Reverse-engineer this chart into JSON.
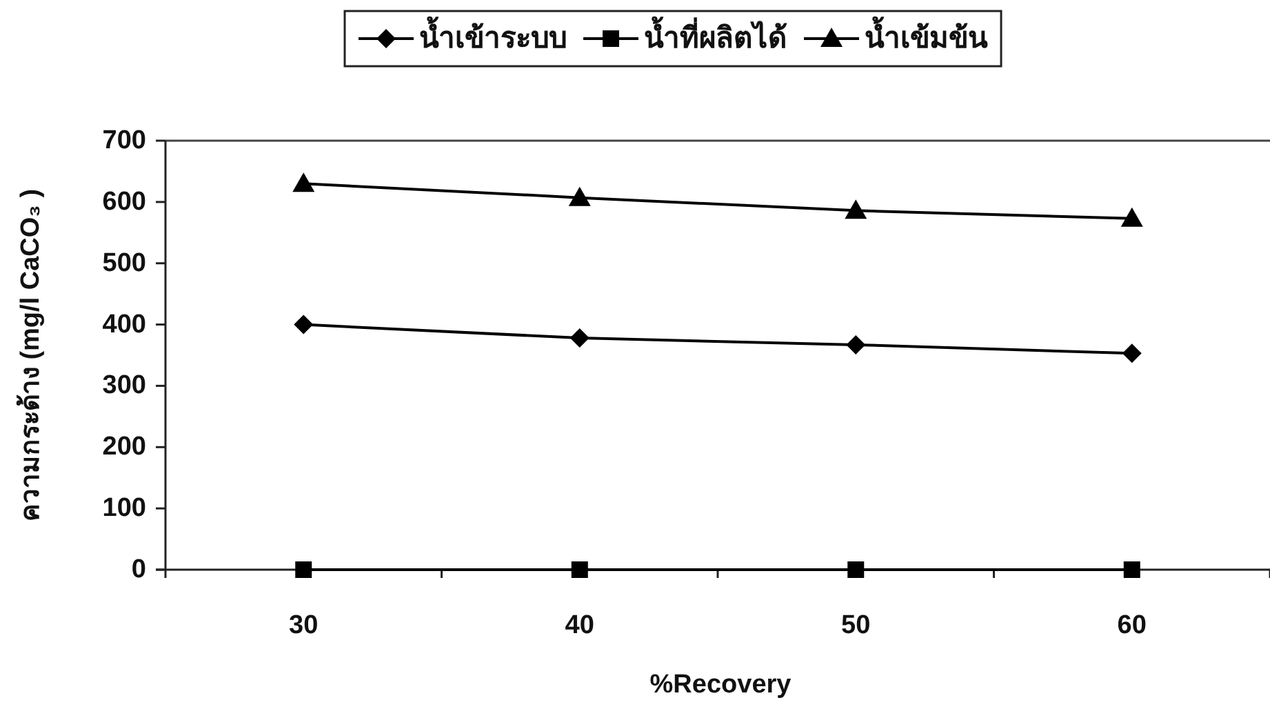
{
  "chart_data": {
    "type": "line",
    "xlabel": "%Recovery",
    "ylabel": "ความกระด้าง (mg/l CaCO₃ )",
    "categories": [
      "30",
      "40",
      "50",
      "60"
    ],
    "series": [
      {
        "name": "น้ำเข้าระบบ",
        "color": "#000000",
        "marker": "diamond",
        "values": [
          400,
          378,
          367,
          353
        ]
      },
      {
        "name": "น้ำที่ผลิตได้",
        "color": "#000000",
        "marker": "square",
        "values": [
          0,
          0,
          0,
          0
        ]
      },
      {
        "name": "น้ำเข้มข้น",
        "color": "#000000",
        "marker": "triangle",
        "values": [
          630,
          607,
          586,
          573
        ]
      }
    ],
    "ylim": [
      0,
      700
    ],
    "yticks": [
      0,
      100,
      200,
      300,
      400,
      500,
      600,
      700
    ],
    "legend": "top",
    "line_style": "solid"
  }
}
